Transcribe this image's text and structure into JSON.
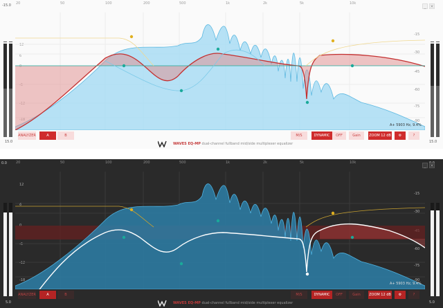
{
  "freq_labels": [
    "20",
    "50",
    "100",
    "200",
    "500",
    "1k",
    "2k",
    "5k",
    "10k"
  ],
  "db_labels_left": [
    "12",
    "6",
    "0",
    "-6",
    "-12",
    "-18"
  ],
  "db_labels_right": [
    "-15",
    "-30",
    "-45",
    "-60",
    "-75",
    "-90"
  ],
  "light": {
    "meter_top_left": "-15.0",
    "meter_bottom_left": "15.0",
    "meter_bottom_right": "15.0",
    "level_left_pct": 52,
    "level_right_pct": 55,
    "readout": "A+ 5903 Hz, 9.4%"
  },
  "dark": {
    "meter_top_left": "0.0",
    "meter_top_right": "0.0",
    "meter_bottom_left": "5.0",
    "meter_bottom_right": "5.0",
    "level_left_pct": 90,
    "level_right_pct": 92,
    "readout": "A+ 5903 Hz, 9.4%"
  },
  "buttons": {
    "analyzer": "ANALYZER",
    "a": "A",
    "b": "B",
    "mid_side": "M/S",
    "dynamic": "DYNAMIC",
    "off": "OFF",
    "gain": "Gain",
    "zoom": "ZOOM 12 dB",
    "settings_icon": "gear-icon",
    "help": "?"
  },
  "window": {
    "minimize": "_",
    "close": "×"
  },
  "brand": {
    "name": "WAVES EQ-MP",
    "tagline": "dual-channel fullband mid/side multiplexer equalizer"
  },
  "colors": {
    "accent": "#cf2c2c",
    "spectrum_light": "#9fd8f2",
    "spectrum_dark": "#3a9bc8",
    "node_teal": "#1aaa9a",
    "node_yellow": "#e0b020"
  }
}
